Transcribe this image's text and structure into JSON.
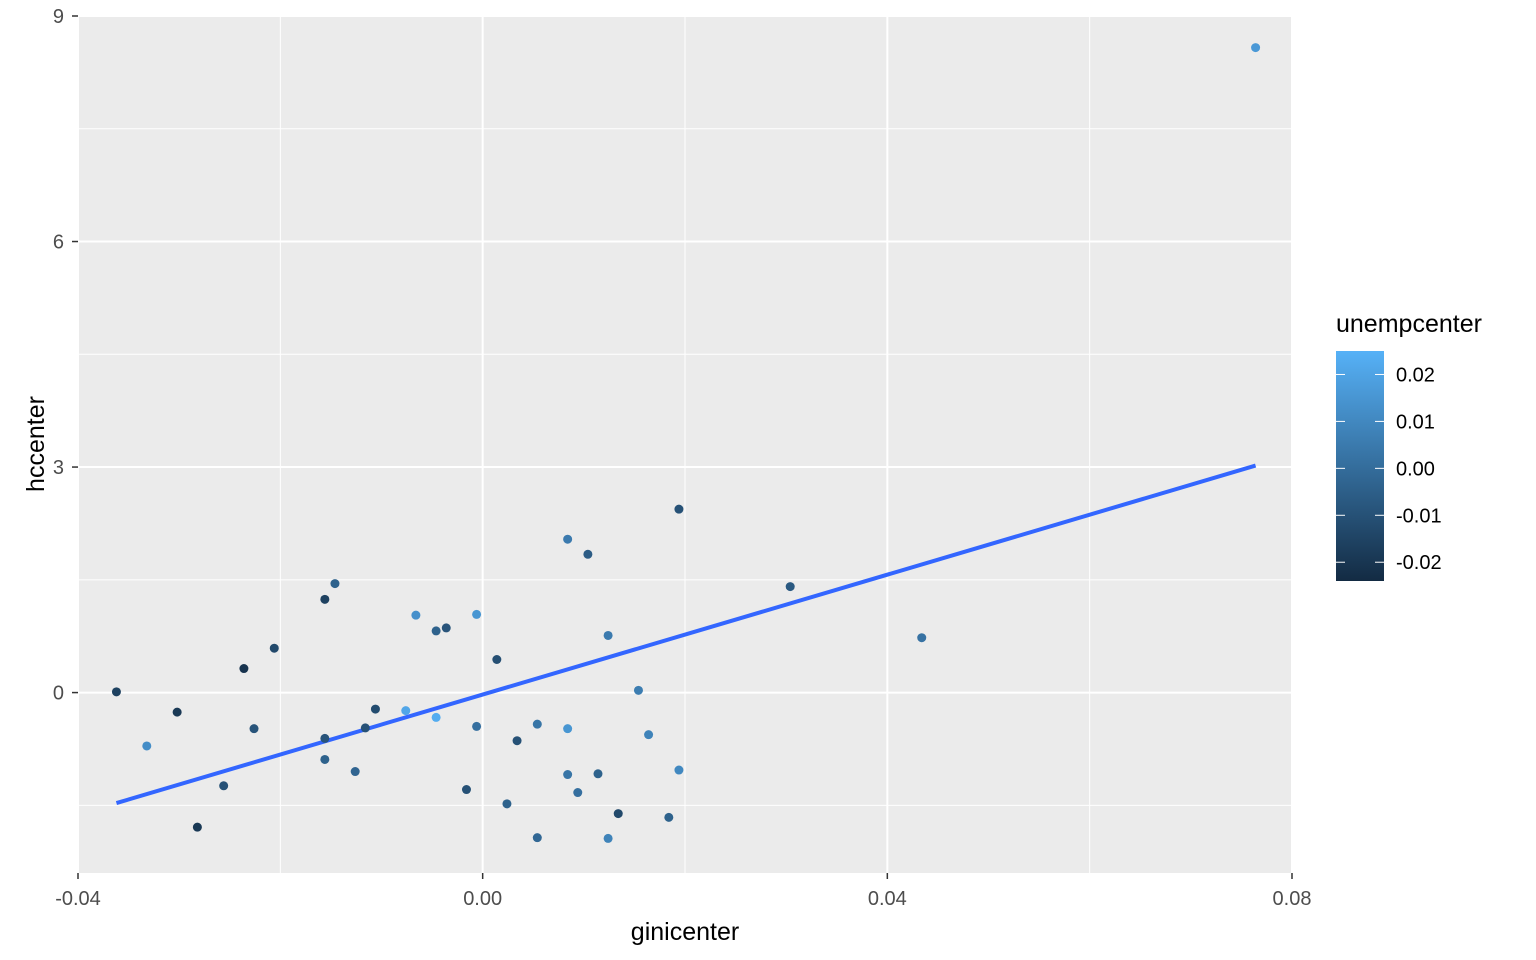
{
  "chart_data": {
    "type": "scatter",
    "xlabel": "ginicenter",
    "ylabel": "hccenter",
    "xlim": [
      -0.04,
      0.08
    ],
    "ylim": [
      -2.4,
      9
    ],
    "x_ticks": [
      -0.04,
      0.0,
      0.04,
      0.08
    ],
    "x_tick_labels": [
      "-0.04",
      "0.00",
      "0.04",
      "0.08"
    ],
    "y_ticks": [
      0,
      3,
      6,
      9
    ],
    "y_tick_labels": [
      "0",
      "3",
      "6",
      "9"
    ],
    "grid": true,
    "background_color": "#ebebeb",
    "color_scale": {
      "title": "unempcenter",
      "low_color": "#132b43",
      "high_color": "#56b1f7",
      "range": [
        -0.024,
        0.025
      ],
      "breaks": [
        0.02,
        0.01,
        0.0,
        -0.01,
        -0.02
      ],
      "break_labels": [
        "0.02",
        "0.01",
        "0.00",
        "-0.01",
        "-0.02"
      ],
      "legend_position": "right"
    },
    "points": [
      {
        "x": -0.0362,
        "y": 0.01,
        "c": -0.016
      },
      {
        "x": -0.0332,
        "y": -0.71,
        "c": 0.012
      },
      {
        "x": -0.0302,
        "y": -0.26,
        "c": -0.019
      },
      {
        "x": -0.0282,
        "y": -1.79,
        "c": -0.019
      },
      {
        "x": -0.0256,
        "y": -1.24,
        "c": -0.01
      },
      {
        "x": -0.0236,
        "y": 0.32,
        "c": -0.021
      },
      {
        "x": -0.0226,
        "y": -0.48,
        "c": -0.009
      },
      {
        "x": -0.0206,
        "y": 0.59,
        "c": -0.013
      },
      {
        "x": -0.0156,
        "y": 1.24,
        "c": -0.016
      },
      {
        "x": -0.0146,
        "y": 1.45,
        "c": -0.004
      },
      {
        "x": -0.0156,
        "y": -0.61,
        "c": -0.009
      },
      {
        "x": -0.0156,
        "y": -0.89,
        "c": -0.004
      },
      {
        "x": -0.0126,
        "y": -1.05,
        "c": -0.003
      },
      {
        "x": -0.0116,
        "y": -0.47,
        "c": -0.01
      },
      {
        "x": -0.0106,
        "y": -0.22,
        "c": -0.012
      },
      {
        "x": -0.0076,
        "y": -0.24,
        "c": 0.021
      },
      {
        "x": -0.0066,
        "y": 1.03,
        "c": 0.013
      },
      {
        "x": -0.0046,
        "y": 0.82,
        "c": -0.004
      },
      {
        "x": -0.0046,
        "y": -0.33,
        "c": 0.023
      },
      {
        "x": -0.0036,
        "y": 0.86,
        "c": -0.009
      },
      {
        "x": -0.0016,
        "y": -1.29,
        "c": -0.01
      },
      {
        "x": -0.0006,
        "y": 1.04,
        "c": 0.015
      },
      {
        "x": -0.0006,
        "y": -0.45,
        "c": 0.001
      },
      {
        "x": 0.0014,
        "y": 0.44,
        "c": -0.011
      },
      {
        "x": 0.0024,
        "y": -1.48,
        "c": -0.004
      },
      {
        "x": 0.0034,
        "y": -0.64,
        "c": -0.01
      },
      {
        "x": 0.0054,
        "y": -0.42,
        "c": 0.003
      },
      {
        "x": 0.0054,
        "y": -1.93,
        "c": -0.002
      },
      {
        "x": 0.0084,
        "y": 2.04,
        "c": 0.005
      },
      {
        "x": 0.0084,
        "y": -0.48,
        "c": 0.015
      },
      {
        "x": 0.0084,
        "y": -1.09,
        "c": 0.003
      },
      {
        "x": 0.0094,
        "y": -1.33,
        "c": 0.001
      },
      {
        "x": 0.0104,
        "y": 1.84,
        "c": -0.006
      },
      {
        "x": 0.0114,
        "y": -1.08,
        "c": -0.004
      },
      {
        "x": 0.0124,
        "y": 0.76,
        "c": 0.005
      },
      {
        "x": 0.0124,
        "y": -1.94,
        "c": 0.008
      },
      {
        "x": 0.0134,
        "y": -1.61,
        "c": -0.013
      },
      {
        "x": 0.0154,
        "y": 0.03,
        "c": 0.006
      },
      {
        "x": 0.0164,
        "y": -0.56,
        "c": 0.008
      },
      {
        "x": 0.0184,
        "y": -1.66,
        "c": -0.004
      },
      {
        "x": 0.0194,
        "y": 2.44,
        "c": -0.01
      },
      {
        "x": 0.0194,
        "y": -1.03,
        "c": 0.01
      },
      {
        "x": 0.0304,
        "y": 1.41,
        "c": -0.007
      },
      {
        "x": 0.0434,
        "y": 0.73,
        "c": 0.002
      },
      {
        "x": 0.0764,
        "y": 8.58,
        "c": 0.016
      }
    ],
    "trend_line": {
      "color": "#3366ff",
      "x": [
        -0.0362,
        0.0764
      ],
      "y": [
        -1.47,
        3.02
      ]
    }
  }
}
